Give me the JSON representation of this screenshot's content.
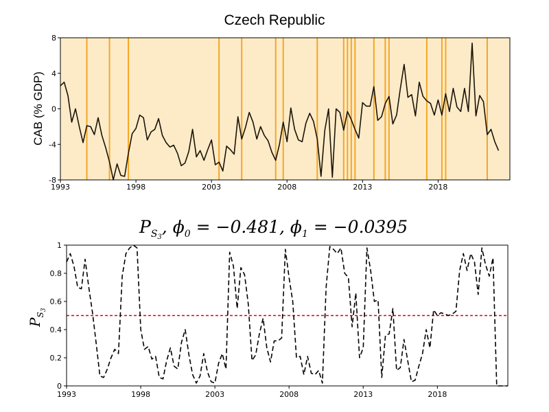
{
  "colors": {
    "shade": "#FDEBC8",
    "vline": "#F5A623",
    "series": "#1a1308",
    "threshold": "#dd0000"
  },
  "chart_data": [
    {
      "type": "line",
      "title": "Czech Republic",
      "ylabel": "CAB (% GDP)",
      "xlim": [
        1993,
        2022.75
      ],
      "ylim": [
        -8,
        8
      ],
      "x_ticks": [
        "1993",
        "1998",
        "2003",
        "2008",
        "2013",
        "2018"
      ],
      "y_ticks": [
        "8",
        "4",
        "0",
        "-4",
        "-8"
      ],
      "background_shading": "full",
      "vertical_lines_x": [
        1994.75,
        1996.25,
        1997.5,
        2003.5,
        2005.0,
        2007.25,
        2007.75,
        2010.0,
        2011.75,
        2012.0,
        2012.25,
        2012.5,
        2013.75,
        2014.5,
        2014.75,
        2017.25,
        2018.25,
        2018.5,
        2021.25
      ],
      "series": [
        {
          "x_start": 1993.0,
          "x_step": 0.25,
          "values": [
            2.6,
            3.0,
            1.5,
            -1.5,
            0.0,
            -2.0,
            -3.8,
            -1.9,
            -2.0,
            -2.9,
            -1.0,
            -3.0,
            -4.4,
            -6.0,
            -8.0,
            -6.2,
            -7.5,
            -7.6,
            -5.0,
            -2.8,
            -2.2,
            -0.7,
            -1.0,
            -3.5,
            -2.6,
            -2.3,
            -1.1,
            -3.0,
            -3.8,
            -4.3,
            -4.1,
            -5.0,
            -6.4,
            -6.1,
            -4.8,
            -2.3,
            -5.4,
            -4.7,
            -5.8,
            -4.6,
            -3.5,
            -6.3,
            -6.0,
            -7.0,
            -4.2,
            -4.6,
            -5.1,
            -0.9,
            -3.4,
            -2.1,
            -0.4,
            -1.5,
            -3.4,
            -2.0,
            -3.0,
            -3.6,
            -4.9,
            -5.8,
            -4.0,
            -1.5,
            -3.7,
            0.1,
            -2.3,
            -3.5,
            -3.7,
            -1.6,
            -0.5,
            -1.4,
            -3.4,
            -7.6,
            -2.4,
            0.0,
            -7.7,
            0.0,
            -0.4,
            -2.4,
            -0.3,
            -1.2,
            -2.3,
            -3.3,
            0.7,
            0.3,
            0.3,
            2.5,
            -1.3,
            -0.9,
            0.6,
            1.4,
            -1.7,
            -0.7,
            2.3,
            5.0,
            1.3,
            1.6,
            -0.8,
            3.0,
            1.4,
            0.9,
            0.6,
            -0.7,
            1.0,
            -0.7,
            1.7,
            -0.3,
            2.3,
            0.2,
            -0.3,
            2.3,
            -0.3,
            7.4,
            -0.8,
            1.5,
            0.8,
            -2.9,
            -2.3,
            -3.7,
            -4.7
          ]
        }
      ]
    },
    {
      "type": "line",
      "title_parts": [
        "P",
        "S",
        "3",
        ", ϕ",
        "0",
        " = −0.481, ϕ",
        "1",
        " = −0.0395"
      ],
      "ylabel_parts": [
        "P",
        "S",
        "3"
      ],
      "xlim": [
        1993,
        2022.75
      ],
      "ylim": [
        0,
        1
      ],
      "x_ticks": [
        "1993",
        "1998",
        "2003",
        "2008",
        "2013",
        "2018"
      ],
      "y_ticks": [
        "1",
        "0.8",
        "0.6",
        "0.4",
        "0.2",
        "0"
      ],
      "threshold": 0.5,
      "line_style": "dashed",
      "series": [
        {
          "x_start": 1993.0,
          "x_step": 0.25,
          "values": [
            0.88,
            0.94,
            0.85,
            0.7,
            0.69,
            0.9,
            0.7,
            0.52,
            0.3,
            0.07,
            0.06,
            0.12,
            0.2,
            0.26,
            0.23,
            0.78,
            0.94,
            0.98,
            1.0,
            0.98,
            0.4,
            0.26,
            0.28,
            0.19,
            0.21,
            0.06,
            0.05,
            0.18,
            0.27,
            0.14,
            0.12,
            0.31,
            0.4,
            0.22,
            0.08,
            0.02,
            0.07,
            0.23,
            0.1,
            0.03,
            0.02,
            0.16,
            0.23,
            0.12,
            0.95,
            0.85,
            0.55,
            0.84,
            0.79,
            0.58,
            0.18,
            0.22,
            0.37,
            0.48,
            0.27,
            0.17,
            0.32,
            0.32,
            0.34,
            0.97,
            0.77,
            0.6,
            0.2,
            0.21,
            0.08,
            0.21,
            0.09,
            0.08,
            0.11,
            0.02,
            0.7,
            0.99,
            0.97,
            0.94,
            0.98,
            0.8,
            0.77,
            0.42,
            0.66,
            0.2,
            0.27,
            0.98,
            0.82,
            0.6,
            0.61,
            0.06,
            0.36,
            0.37,
            0.55,
            0.11,
            0.13,
            0.33,
            0.18,
            0.03,
            0.04,
            0.14,
            0.23,
            0.4,
            0.27,
            0.54,
            0.5,
            0.52,
            0.51,
            0.5,
            0.51,
            0.53,
            0.82,
            0.94,
            0.82,
            0.94,
            0.88,
            0.65,
            0.98,
            0.86,
            0.78,
            0.91,
            0.0,
            0.0,
            0.0,
            0.0
          ]
        }
      ]
    }
  ]
}
